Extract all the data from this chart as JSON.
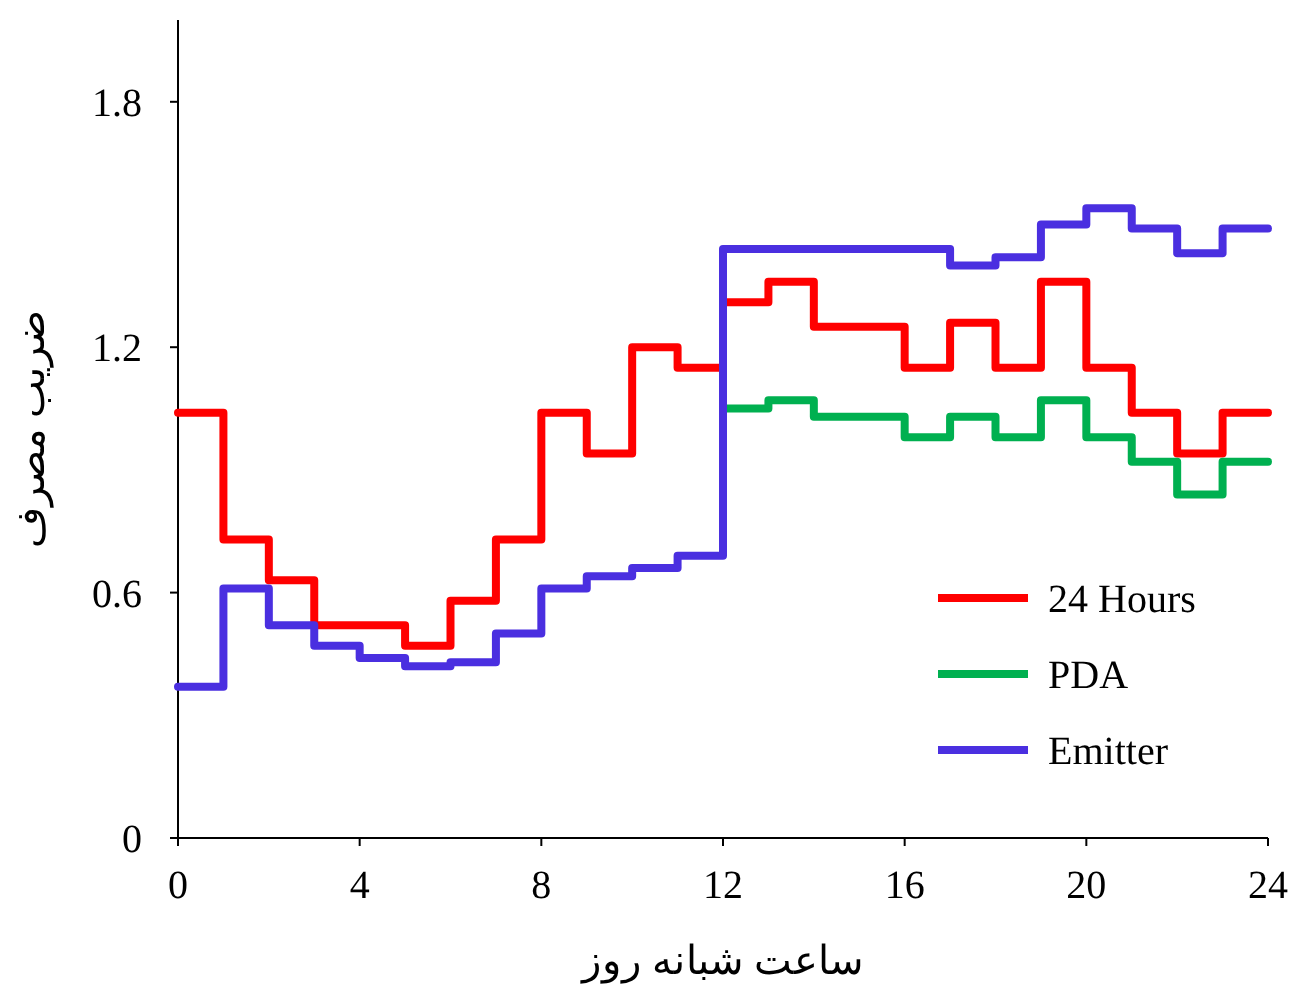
{
  "chart_data": {
    "type": "step",
    "xlabel": "ساعت شبانه روز",
    "ylabel": "ضریب مصرف",
    "x": [
      0,
      1,
      2,
      3,
      4,
      5,
      6,
      7,
      8,
      9,
      10,
      11,
      12,
      13,
      14,
      15,
      16,
      17,
      18,
      19,
      20,
      21,
      22,
      23,
      24
    ],
    "xlim": [
      0,
      24
    ],
    "xticks": [
      0,
      4,
      8,
      12,
      16,
      20,
      24
    ],
    "ylim": [
      0,
      2
    ],
    "yticks": [
      0,
      0.6,
      1.2,
      1.8
    ],
    "grid": false,
    "legend": "bottom right",
    "line_style": "solid",
    "marker": "none",
    "series": [
      {
        "name": "24 Hours",
        "color": "#ff0000",
        "values": [
          1.04,
          0.73,
          0.63,
          0.52,
          0.52,
          0.47,
          0.58,
          0.73,
          1.04,
          0.94,
          1.2,
          1.15,
          1.31,
          1.36,
          1.25,
          1.25,
          1.15,
          1.26,
          1.15,
          1.36,
          1.15,
          1.04,
          0.94,
          1.04,
          1.04
        ]
      },
      {
        "name": "PDA",
        "color": "#00b050",
        "values": [
          null,
          null,
          null,
          null,
          null,
          null,
          null,
          null,
          null,
          null,
          null,
          null,
          1.05,
          1.07,
          1.03,
          1.03,
          0.98,
          1.03,
          0.98,
          1.07,
          0.98,
          0.92,
          0.84,
          0.92,
          0.92
        ]
      },
      {
        "name": "Emitter",
        "color": "#4a2fe0",
        "values": [
          0.37,
          0.61,
          0.52,
          0.47,
          0.44,
          0.42,
          0.43,
          0.5,
          0.61,
          0.64,
          0.66,
          0.69,
          1.44,
          1.44,
          1.44,
          1.44,
          1.44,
          1.4,
          1.42,
          1.5,
          1.54,
          1.49,
          1.43,
          1.49,
          1.49
        ]
      }
    ]
  }
}
